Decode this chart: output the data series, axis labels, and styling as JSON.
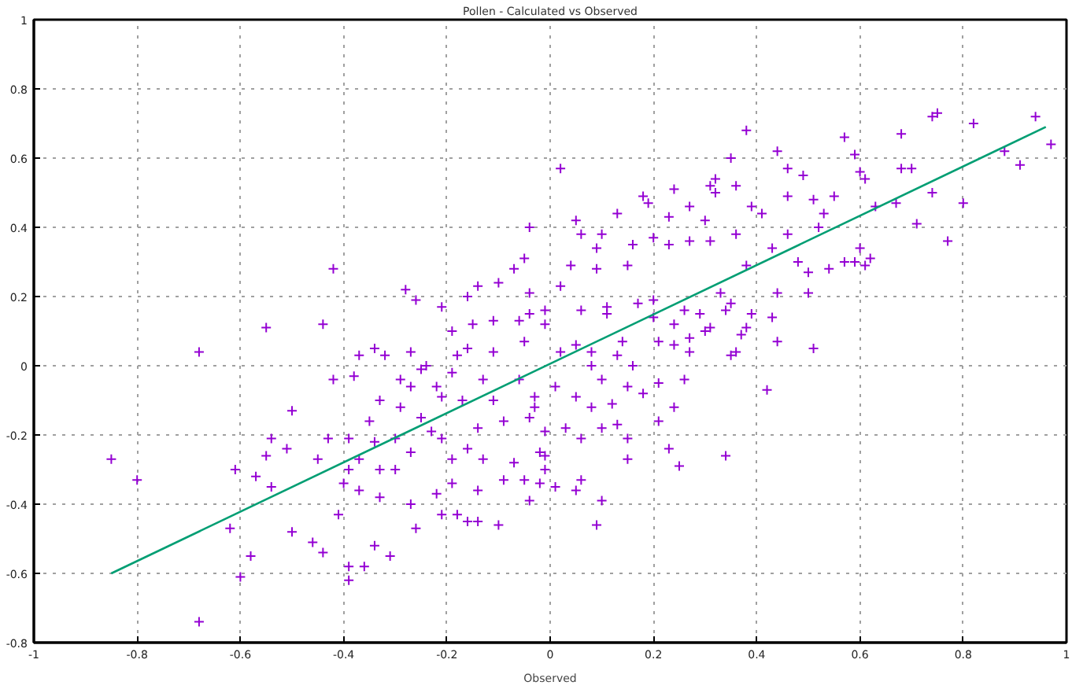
{
  "chart_data": {
    "type": "scatter",
    "title": "Pollen - Calculated vs Observed",
    "xlabel": "Observed",
    "xlim": [
      -1,
      1
    ],
    "ylim": [
      -0.8,
      1
    ],
    "xticks": [
      -1,
      -0.8,
      -0.6,
      -0.4,
      -0.2,
      0,
      0.2,
      0.4,
      0.6,
      0.8,
      1
    ],
    "yticks": [
      -0.8,
      -0.6,
      -0.4,
      -0.2,
      0,
      0.2,
      0.4,
      0.6,
      0.8,
      1
    ],
    "grid": true,
    "series": [
      {
        "color": "#9400d3",
        "marker": "cross",
        "x": [
          -0.85,
          -0.8,
          -0.68,
          -0.68,
          -0.61,
          -0.6,
          -0.58,
          -0.62,
          -0.55,
          -0.44,
          -0.42,
          -0.5,
          -0.5,
          -0.54,
          -0.55,
          -0.57,
          -0.46,
          -0.44,
          -0.39,
          -0.36,
          -0.39,
          -0.42,
          -0.43,
          -0.45,
          -0.51,
          -0.54,
          -0.41,
          -0.34,
          -0.31,
          -0.28,
          -0.26,
          -0.37,
          -0.34,
          0.97,
          0.94,
          0.91,
          0.88,
          0.82,
          0.8,
          0.77,
          0.75,
          0.74,
          0.74,
          0.71,
          0.7,
          0.68,
          0.68,
          0.67,
          0.63,
          0.61,
          0.6,
          0.59,
          0.57,
          0.62,
          0.61,
          0.6,
          0.59,
          0.57,
          0.54,
          0.5,
          0.51,
          0.44,
          0.42,
          0.34,
          0.25,
          0.23,
          0.38,
          0.35,
          0.44,
          0.02,
          0.09,
          0.1,
          0.05,
          0.06,
          0.01,
          -0.02,
          -0.04,
          -0.01,
          0.15,
          0.24,
          0.21,
          0.26,
          -0.04,
          0.05,
          0.06,
          0.13,
          0.1,
          0.09,
          0.18,
          0.19,
          0.24,
          0.23,
          0.27,
          0.31,
          0.32,
          0.32,
          0.36,
          0.39,
          0.3,
          0.2,
          0.16,
          0.23,
          0.27,
          0.31,
          0.36,
          0.15,
          0.09,
          0.04,
          0.02,
          -0.04,
          -0.07,
          -0.1,
          -0.14,
          -0.16,
          -0.21,
          -0.19,
          -0.15,
          -0.11,
          -0.06,
          -0.01,
          0.06,
          0.11,
          0.2,
          0.26,
          0.34,
          0.38,
          0.3,
          0.36,
          0.27,
          0.21,
          0.14,
          0.08,
          0.02,
          -0.05,
          -0.11,
          -0.18,
          -0.27,
          -0.32,
          -0.38,
          -0.24,
          -0.22,
          -0.27,
          -0.29,
          -0.25,
          -0.23,
          -0.27,
          -0.3,
          -0.33,
          -0.37,
          -0.39,
          -0.4,
          -0.37,
          -0.33,
          -0.27,
          -0.22,
          -0.21,
          -0.26,
          -0.16,
          -0.14,
          -0.1,
          -0.18,
          -0.19,
          -0.14,
          -0.09,
          -0.05,
          -0.07,
          -0.13,
          -0.16,
          -0.19,
          -0.21,
          -0.14,
          -0.09,
          -0.04,
          -0.01,
          -0.02,
          -0.11,
          -0.17,
          -0.21,
          -0.25,
          -0.19,
          -0.13,
          -0.06,
          -0.03,
          -0.16,
          -0.29,
          -0.33,
          -0.35,
          -0.39,
          -0.34,
          -0.3,
          -0.04,
          -0.01,
          0.05,
          0.08,
          0.1,
          0.13,
          0.16,
          0.15,
          0.12,
          0.08,
          0.05,
          0.01,
          -0.03,
          0.03,
          0.06,
          0.1,
          0.13,
          0.15,
          -0.01,
          0.21,
          0.18,
          0.24,
          0.27,
          0.31,
          0.35,
          0.37,
          0.39,
          0.43,
          0.35,
          0.33,
          0.29,
          0.24,
          0.2,
          0.17,
          0.11,
          0.38,
          0.43,
          0.46,
          0.48,
          0.5,
          0.44,
          0.52,
          0.53,
          0.55,
          0.51,
          0.46,
          0.49,
          0.46,
          0.41,
          -0.05
        ],
        "values": [
          -0.27,
          -0.33,
          0.04,
          -0.74,
          -0.3,
          -0.61,
          -0.55,
          -0.47,
          0.11,
          0.12,
          0.28,
          -0.13,
          -0.48,
          -0.35,
          -0.26,
          -0.32,
          -0.51,
          -0.54,
          -0.62,
          -0.58,
          -0.58,
          -0.04,
          -0.21,
          -0.27,
          -0.24,
          -0.21,
          -0.43,
          -0.52,
          -0.55,
          0.22,
          0.19,
          0.03,
          0.05,
          0.64,
          0.72,
          0.58,
          0.62,
          0.7,
          0.47,
          0.36,
          0.73,
          0.72,
          0.5,
          0.41,
          0.57,
          0.67,
          0.57,
          0.47,
          0.46,
          0.54,
          0.56,
          0.61,
          0.66,
          0.31,
          0.29,
          0.34,
          0.3,
          0.3,
          0.28,
          0.21,
          0.05,
          0.07,
          -0.07,
          -0.26,
          -0.29,
          -0.24,
          0.68,
          0.6,
          0.62,
          0.57,
          -0.46,
          -0.39,
          -0.36,
          -0.33,
          -0.35,
          -0.34,
          -0.39,
          -0.3,
          -0.27,
          -0.12,
          -0.16,
          -0.04,
          0.4,
          0.42,
          0.38,
          0.44,
          0.38,
          0.34,
          0.49,
          0.47,
          0.51,
          0.43,
          0.46,
          0.52,
          0.54,
          0.5,
          0.52,
          0.46,
          0.42,
          0.37,
          0.35,
          0.35,
          0.36,
          0.36,
          0.38,
          0.29,
          0.28,
          0.29,
          0.23,
          0.21,
          0.28,
          0.24,
          0.23,
          0.2,
          0.17,
          0.1,
          0.12,
          0.13,
          0.13,
          0.16,
          0.16,
          0.17,
          0.19,
          0.16,
          0.16,
          0.11,
          0.1,
          0.04,
          0.04,
          0.07,
          0.07,
          0.04,
          0.04,
          0.07,
          0.04,
          0.03,
          0.04,
          0.03,
          -0.03,
          0.0,
          -0.06,
          -0.06,
          -0.12,
          -0.15,
          -0.19,
          -0.25,
          -0.3,
          -0.3,
          -0.27,
          -0.3,
          -0.34,
          -0.36,
          -0.38,
          -0.4,
          -0.37,
          -0.43,
          -0.47,
          -0.45,
          -0.45,
          -0.46,
          -0.43,
          -0.34,
          -0.36,
          -0.33,
          -0.33,
          -0.28,
          -0.27,
          -0.24,
          -0.27,
          -0.21,
          -0.18,
          -0.16,
          -0.15,
          -0.19,
          -0.25,
          -0.1,
          -0.1,
          -0.09,
          -0.01,
          -0.02,
          -0.04,
          -0.04,
          -0.09,
          0.05,
          -0.04,
          -0.1,
          -0.16,
          -0.21,
          -0.22,
          -0.21,
          0.15,
          0.12,
          0.06,
          0.0,
          -0.04,
          0.03,
          0.0,
          -0.06,
          -0.11,
          -0.12,
          -0.09,
          -0.06,
          -0.12,
          -0.18,
          -0.21,
          -0.18,
          -0.17,
          -0.21,
          -0.26,
          -0.05,
          -0.08,
          0.06,
          0.08,
          0.11,
          0.03,
          0.09,
          0.15,
          0.14,
          0.18,
          0.21,
          0.15,
          0.12,
          0.14,
          0.18,
          0.15,
          0.29,
          0.34,
          0.38,
          0.3,
          0.27,
          0.21,
          0.4,
          0.44,
          0.49,
          0.48,
          0.49,
          0.55,
          0.57,
          0.44,
          0.31
        ]
      },
      {
        "type": "line",
        "color": "#009e73",
        "line_style": "solid",
        "x": [
          -0.85,
          0.96
        ],
        "values": [
          -0.6,
          0.69
        ]
      }
    ]
  }
}
